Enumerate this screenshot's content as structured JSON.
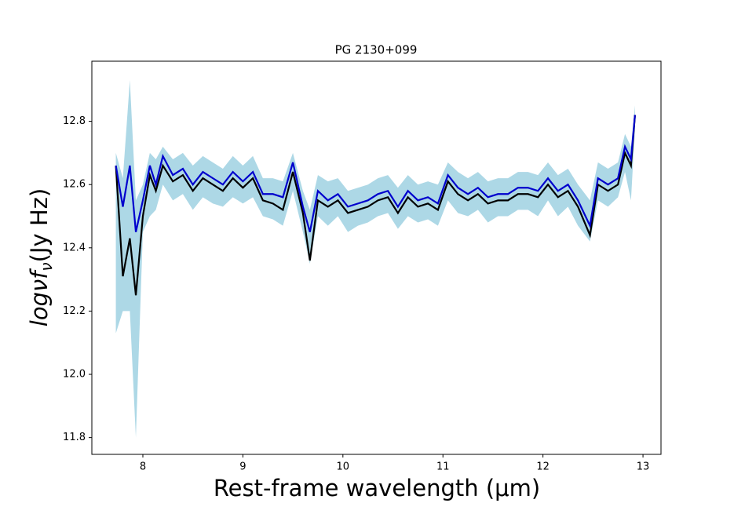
{
  "chart_data": {
    "type": "line",
    "title": "PG 2130+099",
    "xlabel": "Rest-frame wavelength (μm)",
    "ylabel": {
      "main": "logνf",
      "sub": "ν",
      "unit": "(Jy Hz)"
    },
    "xlim": [
      7.49,
      13.18
    ],
    "ylim": [
      11.747,
      12.99
    ],
    "xticks": [
      8,
      9,
      10,
      11,
      12,
      13
    ],
    "yticks": [
      11.8,
      {
        "value": 12,
        "label": "12.0"
      },
      12.2,
      12.4,
      12.6,
      12.8
    ],
    "x": [
      7.73,
      7.8,
      7.87,
      7.93,
      8.0,
      8.07,
      8.13,
      8.2,
      8.3,
      8.4,
      8.5,
      8.6,
      8.7,
      8.8,
      8.9,
      9.0,
      9.1,
      9.2,
      9.3,
      9.4,
      9.5,
      9.6,
      9.67,
      9.75,
      9.85,
      9.95,
      10.05,
      10.15,
      10.25,
      10.35,
      10.45,
      10.55,
      10.65,
      10.75,
      10.85,
      10.95,
      11.05,
      11.15,
      11.25,
      11.35,
      11.45,
      11.55,
      11.65,
      11.75,
      11.85,
      11.95,
      12.05,
      12.15,
      12.25,
      12.35,
      12.47,
      12.55,
      12.65,
      12.75,
      12.82,
      12.88,
      12.92
    ],
    "bands": [
      {
        "color": "#add8e6",
        "lower": [
          12.13,
          12.2,
          12.2,
          11.8,
          12.45,
          12.5,
          12.52,
          12.6,
          12.55,
          12.57,
          12.52,
          12.56,
          12.54,
          12.53,
          12.56,
          12.54,
          12.56,
          12.5,
          12.49,
          12.47,
          12.58,
          12.45,
          12.35,
          12.5,
          12.47,
          12.5,
          12.45,
          12.47,
          12.48,
          12.5,
          12.51,
          12.46,
          12.5,
          12.48,
          12.49,
          12.47,
          12.55,
          12.51,
          12.5,
          12.52,
          12.48,
          12.5,
          12.5,
          12.52,
          12.52,
          12.5,
          12.55,
          12.5,
          12.53,
          12.47,
          12.42,
          12.55,
          12.53,
          12.56,
          12.64,
          12.55,
          12.78
        ],
        "upper": [
          12.7,
          12.62,
          12.93,
          12.55,
          12.6,
          12.7,
          12.68,
          12.72,
          12.68,
          12.7,
          12.66,
          12.69,
          12.67,
          12.65,
          12.69,
          12.66,
          12.69,
          12.62,
          12.62,
          12.61,
          12.7,
          12.58,
          12.52,
          12.63,
          12.61,
          12.62,
          12.58,
          12.59,
          12.6,
          12.62,
          12.63,
          12.59,
          12.63,
          12.6,
          12.61,
          12.6,
          12.67,
          12.64,
          12.62,
          12.64,
          12.61,
          12.62,
          12.62,
          12.64,
          12.64,
          12.63,
          12.67,
          12.63,
          12.65,
          12.6,
          12.55,
          12.67,
          12.65,
          12.67,
          12.76,
          12.72,
          12.85
        ]
      }
    ],
    "series": [
      {
        "color": "#000000",
        "values": [
          12.66,
          12.31,
          12.43,
          12.25,
          12.5,
          12.63,
          12.58,
          12.66,
          12.61,
          12.63,
          12.58,
          12.62,
          12.6,
          12.58,
          12.62,
          12.59,
          12.62,
          12.55,
          12.54,
          12.52,
          12.64,
          12.51,
          12.36,
          12.55,
          12.53,
          12.55,
          12.51,
          12.52,
          12.53,
          12.55,
          12.56,
          12.51,
          12.56,
          12.53,
          12.54,
          12.52,
          12.61,
          12.57,
          12.55,
          12.57,
          12.54,
          12.55,
          12.55,
          12.57,
          12.57,
          12.56,
          12.6,
          12.56,
          12.58,
          12.53,
          12.44,
          12.6,
          12.58,
          12.6,
          12.7,
          12.66,
          12.82
        ]
      },
      {
        "color": "#0000cd",
        "values": [
          12.66,
          12.53,
          12.66,
          12.45,
          12.55,
          12.66,
          12.6,
          12.69,
          12.63,
          12.65,
          12.6,
          12.64,
          12.62,
          12.6,
          12.64,
          12.61,
          12.64,
          12.57,
          12.57,
          12.56,
          12.67,
          12.53,
          12.45,
          12.58,
          12.55,
          12.57,
          12.53,
          12.54,
          12.55,
          12.57,
          12.58,
          12.53,
          12.58,
          12.55,
          12.56,
          12.54,
          12.63,
          12.59,
          12.57,
          12.59,
          12.56,
          12.57,
          12.57,
          12.59,
          12.59,
          12.58,
          12.62,
          12.58,
          12.6,
          12.55,
          12.47,
          12.62,
          12.6,
          12.62,
          12.72,
          12.68,
          12.82
        ]
      }
    ]
  }
}
